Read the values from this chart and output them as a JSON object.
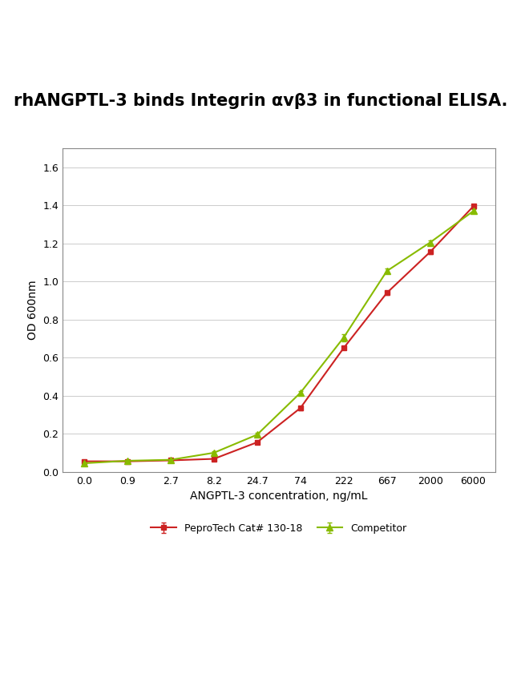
{
  "title": "rhANGPTL-3 binds Integrin αvβ3 in functional ELISA.",
  "xlabel": "ANGPTL-3 concentration, ng/mL",
  "ylabel": "OD 600nm",
  "x_labels": [
    "0.0",
    "0.9",
    "2.7",
    "8.2",
    "24.7",
    "74",
    "222",
    "667",
    "2000",
    "6000"
  ],
  "x_positions": [
    0,
    1,
    2,
    3,
    4,
    5,
    6,
    7,
    8,
    9
  ],
  "peprotech_values": [
    0.055,
    0.055,
    0.06,
    0.068,
    0.155,
    0.335,
    0.65,
    0.94,
    1.155,
    1.395
  ],
  "competitor_values": [
    0.045,
    0.058,
    0.063,
    0.1,
    0.195,
    0.415,
    0.705,
    1.055,
    1.205,
    1.37
  ],
  "peprotech_errors": [
    0.005,
    0.004,
    0.005,
    0.005,
    0.008,
    0.01,
    0.008,
    0.01,
    0.01,
    0.01
  ],
  "competitor_errors": [
    0.005,
    0.004,
    0.005,
    0.008,
    0.008,
    0.01,
    0.02,
    0.012,
    0.01,
    0.008
  ],
  "peprotech_color": "#cc2222",
  "competitor_color": "#88bb00",
  "ylim": [
    0.0,
    1.7
  ],
  "yticks": [
    0.0,
    0.2,
    0.4,
    0.6,
    0.8,
    1.0,
    1.2,
    1.4,
    1.6
  ],
  "legend_peprotech": "PeproTech Cat# 130-18",
  "legend_competitor": "Competitor",
  "title_fontsize": 15,
  "axis_label_fontsize": 10,
  "tick_fontsize": 9,
  "legend_fontsize": 9,
  "bg_color": "#ffffff",
  "plot_bg_color": "#ffffff"
}
